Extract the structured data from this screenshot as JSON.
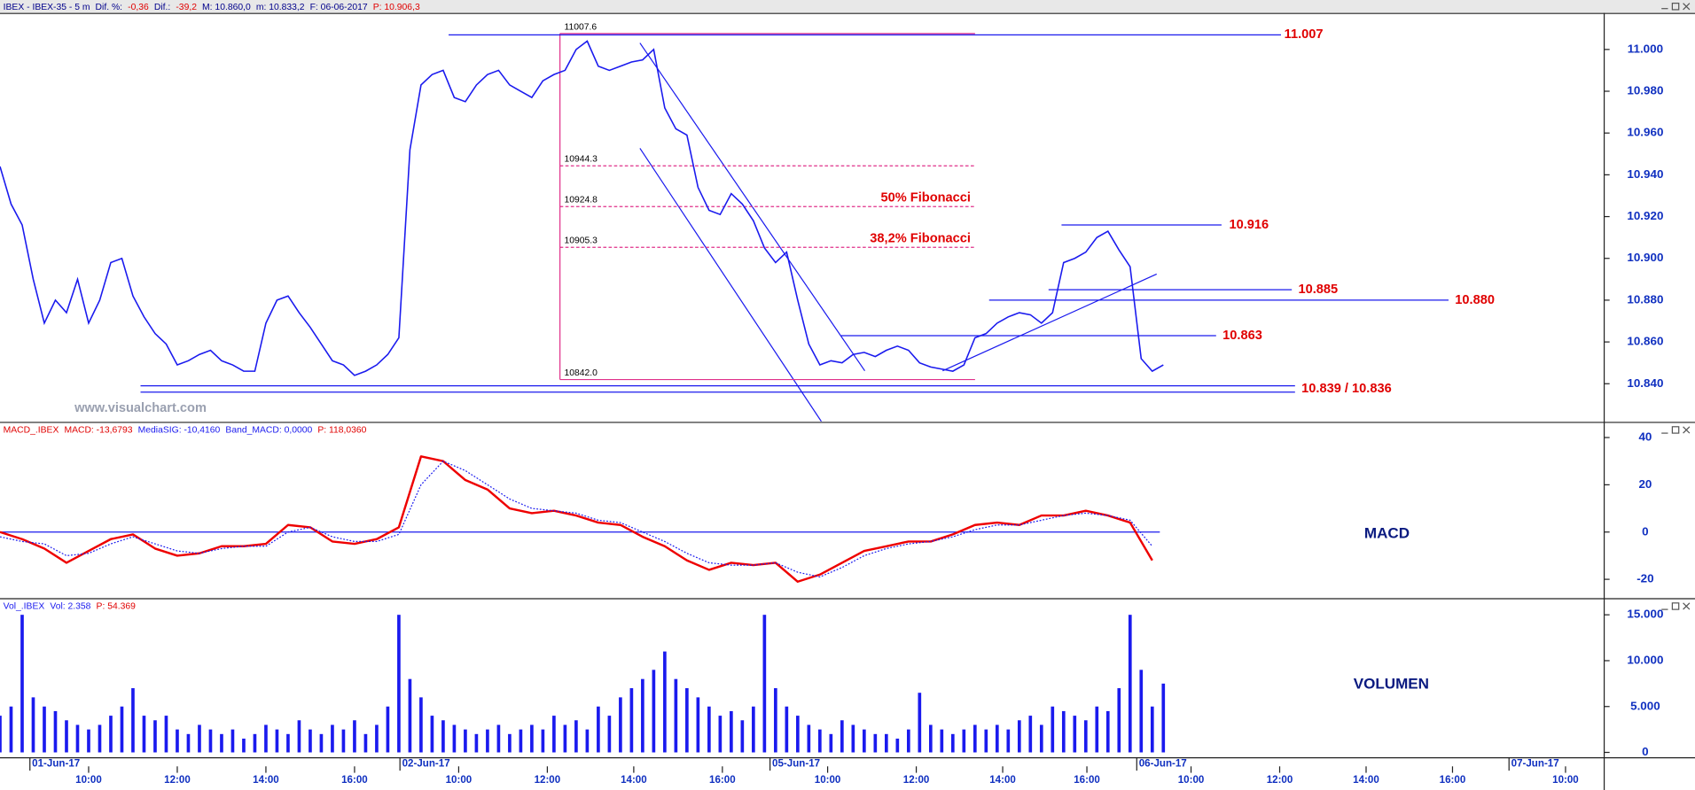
{
  "header": [
    {
      "text": "IBEX - IBEX-35 -  5 m",
      "color": "#00008b"
    },
    {
      "text": "Dif. %:",
      "color": "#00008b"
    },
    {
      "text": "-0,36",
      "color": "#e00000"
    },
    {
      "text": "Dif.:",
      "color": "#00008b"
    },
    {
      "text": "-39,2",
      "color": "#e00000"
    },
    {
      "text": "M: 10.860,0",
      "color": "#00008b"
    },
    {
      "text": "m: 10.833,2",
      "color": "#00008b"
    },
    {
      "text": "F: 06-06-2017",
      "color": "#00008b"
    },
    {
      "text": "P: 10.906,3",
      "color": "#e00000"
    }
  ],
  "watermark": "www.visualchart.com",
  "chart_data": [
    {
      "type": "line",
      "color": "#1a1aee",
      "x": [
        0,
        1,
        2,
        3,
        4,
        5,
        6,
        7,
        8,
        9,
        10,
        11,
        12,
        13,
        14,
        15,
        16,
        17,
        18,
        19,
        20,
        21,
        22,
        23,
        24,
        25,
        26,
        27,
        28,
        29,
        30,
        31,
        32,
        33,
        34,
        35,
        36,
        37,
        38,
        39,
        40,
        41,
        42,
        43,
        44,
        45,
        46,
        47,
        48,
        49,
        50,
        51,
        52,
        53,
        54,
        55,
        56,
        57,
        58,
        59,
        60,
        61,
        62,
        63,
        64,
        65,
        66,
        67,
        68,
        69,
        70,
        71,
        72,
        73,
        74,
        75,
        76,
        77,
        78,
        79,
        80,
        81,
        82,
        83,
        84,
        85,
        86,
        87,
        88,
        89,
        90,
        91,
        92,
        93,
        94,
        95,
        96,
        97,
        98,
        99,
        100,
        101,
        102,
        103,
        104,
        105
      ],
      "values": [
        10944,
        10926,
        10916,
        10890,
        10869,
        10880,
        10874,
        10890,
        10869,
        10880,
        10898,
        10900,
        10882,
        10872,
        10864,
        10859,
        10849,
        10851,
        10854,
        10856,
        10851,
        10849,
        10846,
        10846,
        10869,
        10880,
        10882,
        10874,
        10867,
        10859,
        10851,
        10849,
        10844,
        10846,
        10849,
        10854,
        10862,
        10952,
        10983,
        10988,
        10990,
        10977,
        10975,
        10983,
        10988,
        10990,
        10983,
        10980,
        10977,
        10985,
        10988,
        10990,
        11000,
        11004,
        10992,
        10990,
        10992,
        10994,
        10995,
        11000,
        10972,
        10962,
        10959,
        10934,
        10923,
        10921,
        10931,
        10926,
        10918,
        10905,
        10898,
        10903,
        10880,
        10859,
        10849,
        10851,
        10850,
        10854,
        10855,
        10853,
        10856,
        10858,
        10856,
        10850,
        10848,
        10847,
        10846,
        10849,
        10862,
        10864,
        10869,
        10872,
        10874,
        10873,
        10869,
        10874,
        10898,
        10900,
        10903,
        10910,
        10913,
        10904,
        10896,
        10852,
        10846,
        10849
      ],
      "xlim": [
        0,
        144.4
      ],
      "ylim": [
        10822,
        11017.5
      ],
      "yticks": [
        {
          "value": 10840,
          "label": "10.840"
        },
        {
          "value": 10860,
          "label": "10.860"
        },
        {
          "value": 10880,
          "label": "10.880"
        },
        {
          "value": 10900,
          "label": "10.900"
        },
        {
          "value": 10920,
          "label": "10.920"
        },
        {
          "value": 10940,
          "label": "10.940"
        },
        {
          "value": 10960,
          "label": "10.960"
        },
        {
          "value": 10980,
          "label": "10.980"
        },
        {
          "value": 11000,
          "label": "11.000"
        }
      ],
      "levels": [
        {
          "label": "11.007",
          "values": [
            11007
          ]
        },
        {
          "label": "10.916",
          "values": [
            10916
          ]
        },
        {
          "label": "10.885",
          "values": [
            10885
          ]
        },
        {
          "label": "10.880",
          "values": [
            10880
          ]
        },
        {
          "label": "10.863",
          "values": [
            10863
          ]
        },
        {
          "label": "10.839 / 10.836",
          "values": [
            10839,
            10836
          ]
        }
      ],
      "fibonacci": [
        {
          "value": 11007.6,
          "label": "11007.6"
        },
        {
          "value": 10944.3,
          "label": "10944.3"
        },
        {
          "value": 10924.8,
          "label": "10924.8",
          "note": "50% Fibonacci"
        },
        {
          "value": 10905.3,
          "label": "10905.3",
          "note": "38,2% Fibonacci"
        },
        {
          "value": 10842.0,
          "label": "10842.0"
        }
      ]
    },
    {
      "type": "line",
      "title": "MACD",
      "legend": [
        {
          "text": "MACD_.IBEX",
          "color": "#e00000"
        },
        {
          "text": "MACD: -13,6793",
          "color": "#e00000"
        },
        {
          "text": "MediaSIG: -10,4160",
          "color": "#1a1aee"
        },
        {
          "text": "Band_MACD: 0,0000",
          "color": "#1a1aee"
        },
        {
          "text": "P: 118,0360",
          "color": "#e00000"
        }
      ],
      "x": [
        0,
        2,
        4,
        6,
        8,
        10,
        12,
        14,
        16,
        18,
        20,
        22,
        24,
        26,
        28,
        30,
        32,
        34,
        36,
        38,
        40,
        42,
        44,
        46,
        48,
        50,
        52,
        54,
        56,
        58,
        60,
        62,
        64,
        66,
        68,
        70,
        72,
        74,
        76,
        78,
        80,
        82,
        84,
        86,
        88,
        90,
        92,
        94,
        96,
        98,
        100,
        102,
        104
      ],
      "series": [
        {
          "name": "MACD",
          "color": "#ee0000",
          "values": [
            0,
            -3,
            -7,
            -13,
            -8,
            -3,
            -1,
            -7,
            -10,
            -9,
            -6,
            -6,
            -5,
            3,
            2,
            -4,
            -5,
            -3,
            2,
            32,
            30,
            22,
            18,
            10,
            8,
            9,
            7,
            4,
            3,
            -2,
            -6,
            -12,
            -16,
            -13,
            -14,
            -13,
            -21,
            -18,
            -13,
            -8,
            -6,
            -4,
            -4,
            -1,
            3,
            4,
            3,
            7,
            7,
            9,
            7,
            4,
            -12
          ]
        },
        {
          "name": "MediaSIG",
          "color": "#1a1aee",
          "dashed": true,
          "values": [
            -2,
            -4,
            -5,
            -10,
            -9,
            -5,
            -2,
            -5,
            -8,
            -9,
            -7,
            -6,
            -6,
            0,
            2,
            -2,
            -4,
            -4,
            -1,
            20,
            30,
            26,
            20,
            14,
            10,
            9,
            8,
            5,
            4,
            0,
            -4,
            -9,
            -13,
            -14,
            -14,
            -13,
            -17,
            -19,
            -15,
            -10,
            -7,
            -5,
            -4,
            -2,
            1,
            3,
            3,
            5,
            7,
            8,
            7,
            5,
            -6
          ]
        }
      ],
      "band": 0,
      "band_color": "#1a1aee",
      "xlim": [
        0,
        144.4
      ],
      "ylim": [
        -28.2,
        46.4
      ],
      "yticks": [
        -20,
        0,
        20,
        40
      ]
    },
    {
      "type": "bar",
      "title": "VOLUMEN",
      "color": "#1a1aee",
      "legend": [
        {
          "text": "Vol_.IBEX",
          "color": "#1a1aee"
        },
        {
          "text": "Vol: 2.358",
          "color": "#1a1aee"
        },
        {
          "text": "P: 54.369",
          "color": "#e00000"
        }
      ],
      "x": [
        0,
        1,
        2,
        3,
        4,
        5,
        6,
        7,
        8,
        9,
        10,
        11,
        12,
        13,
        14,
        15,
        16,
        17,
        18,
        19,
        20,
        21,
        22,
        23,
        24,
        25,
        26,
        27,
        28,
        29,
        30,
        31,
        32,
        33,
        34,
        35,
        36,
        37,
        38,
        39,
        40,
        41,
        42,
        43,
        44,
        45,
        46,
        47,
        48,
        49,
        50,
        51,
        52,
        53,
        54,
        55,
        56,
        57,
        58,
        59,
        60,
        61,
        62,
        63,
        64,
        65,
        66,
        67,
        68,
        69,
        70,
        71,
        72,
        73,
        74,
        75,
        76,
        77,
        78,
        79,
        80,
        81,
        82,
        83,
        84,
        85,
        86,
        87,
        88,
        89,
        90,
        91,
        92,
        93,
        94,
        95,
        96,
        97,
        98,
        99,
        100,
        101,
        102,
        103,
        104,
        105
      ],
      "values": [
        4000,
        5000,
        15000,
        6000,
        5000,
        4500,
        3500,
        3000,
        2500,
        3000,
        4000,
        5000,
        7000,
        4000,
        3500,
        4000,
        2500,
        2000,
        3000,
        2500,
        2000,
        2500,
        1500,
        2000,
        3000,
        2500,
        2000,
        3500,
        2500,
        2000,
        3000,
        2500,
        3500,
        2000,
        3000,
        5000,
        15000,
        8000,
        6000,
        4000,
        3500,
        3000,
        2500,
        2000,
        2500,
        3000,
        2000,
        2500,
        3000,
        2500,
        4000,
        3000,
        3500,
        2500,
        5000,
        4000,
        6000,
        7000,
        8000,
        9000,
        11000,
        8000,
        7000,
        6000,
        5000,
        4000,
        4500,
        3500,
        5000,
        15000,
        7000,
        5000,
        4000,
        3000,
        2500,
        2000,
        3500,
        3000,
        2500,
        2000,
        2000,
        1500,
        2500,
        6500,
        3000,
        2500,
        2000,
        2500,
        3000,
        2500,
        3000,
        2500,
        3500,
        4000,
        3000,
        5000,
        4500,
        4000,
        3500,
        5000,
        4500,
        7000,
        15000,
        9000,
        5000,
        7500
      ],
      "xlim": [
        0,
        144.4
      ],
      "ylim": [
        -586,
        16758
      ],
      "yticks": [
        0,
        {
          "value": 5000,
          "label": "5.000"
        },
        {
          "value": 10000,
          "label": "10.000"
        },
        {
          "value": 15000,
          "label": "15.000"
        }
      ],
      "xticks": [
        {
          "value": 8,
          "label": "10:00"
        },
        {
          "value": 16,
          "label": "12:00"
        },
        {
          "value": 24,
          "label": "14:00"
        },
        {
          "value": 32,
          "label": "16:00"
        },
        {
          "value": 41.4,
          "label": "10:00"
        },
        {
          "value": 49.4,
          "label": "12:00"
        },
        {
          "value": 57.2,
          "label": "14:00"
        },
        {
          "value": 65.2,
          "label": "16:00"
        },
        {
          "value": 74.7,
          "label": "10:00"
        },
        {
          "value": 82.7,
          "label": "12:00"
        },
        {
          "value": 90.5,
          "label": "14:00"
        },
        {
          "value": 98.1,
          "label": "16:00"
        },
        {
          "value": 107.5,
          "label": "10:00"
        },
        {
          "value": 115.5,
          "label": "12:00"
        },
        {
          "value": 123.3,
          "label": "14:00"
        },
        {
          "value": 131.1,
          "label": "16:00"
        },
        {
          "value": 141.3,
          "label": "10:00"
        }
      ],
      "date_ticks": [
        {
          "value": 2.7,
          "label": "01-Jun-17"
        },
        {
          "value": 36.1,
          "label": "02-Jun-17"
        },
        {
          "value": 69.5,
          "label": "05-Jun-17"
        },
        {
          "value": 102.6,
          "label": "06-Jun-17"
        },
        {
          "value": 136.2,
          "label": "07-Jun-17"
        }
      ]
    }
  ]
}
